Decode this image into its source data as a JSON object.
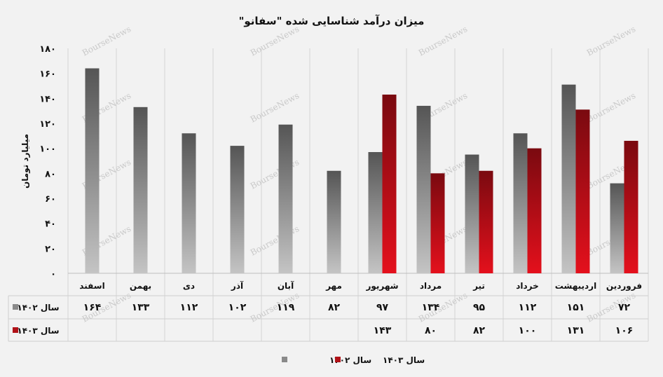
{
  "chart_data": {
    "type": "bar",
    "title": "میزان درآمد شناسایی شده \"سفانو\"",
    "ylabel": "میلیارد تومان",
    "ylim": [
      0,
      180
    ],
    "yticks": [
      "۰",
      "۲۰",
      "۴۰",
      "۶۰",
      "۸۰",
      "۱۰۰",
      "۱۲۰",
      "۱۴۰",
      "۱۶۰",
      "۱۸۰"
    ],
    "categories": [
      "فروردین",
      "اردیبهشت",
      "خرداد",
      "تیر",
      "مرداد",
      "شهریور",
      "مهر",
      "آبان",
      "آذر",
      "دی",
      "بهمن",
      "اسفند"
    ],
    "series": [
      {
        "name": "سال ۱۴۰۲",
        "color": "#8a8a8a",
        "values": [
          72,
          151,
          112,
          95,
          134,
          97,
          82,
          119,
          102,
          112,
          133,
          164
        ],
        "labels": [
          "۷۲",
          "۱۵۱",
          "۱۱۲",
          "۹۵",
          "۱۳۴",
          "۹۷",
          "۸۲",
          "۱۱۹",
          "۱۰۲",
          "۱۱۲",
          "۱۳۳",
          "۱۶۴"
        ]
      },
      {
        "name": "سال ۱۴۰۳",
        "color": "#b01218",
        "values": [
          106,
          131,
          100,
          82,
          80,
          143,
          null,
          null,
          null,
          null,
          null,
          null
        ],
        "labels": [
          "۱۰۶",
          "۱۳۱",
          "۱۰۰",
          "۸۲",
          "۸۰",
          "۱۴۳",
          "",
          "",
          "",
          "",
          "",
          ""
        ]
      }
    ],
    "grid": true,
    "legend": "bottom-center",
    "watermark": "BourseNews"
  }
}
